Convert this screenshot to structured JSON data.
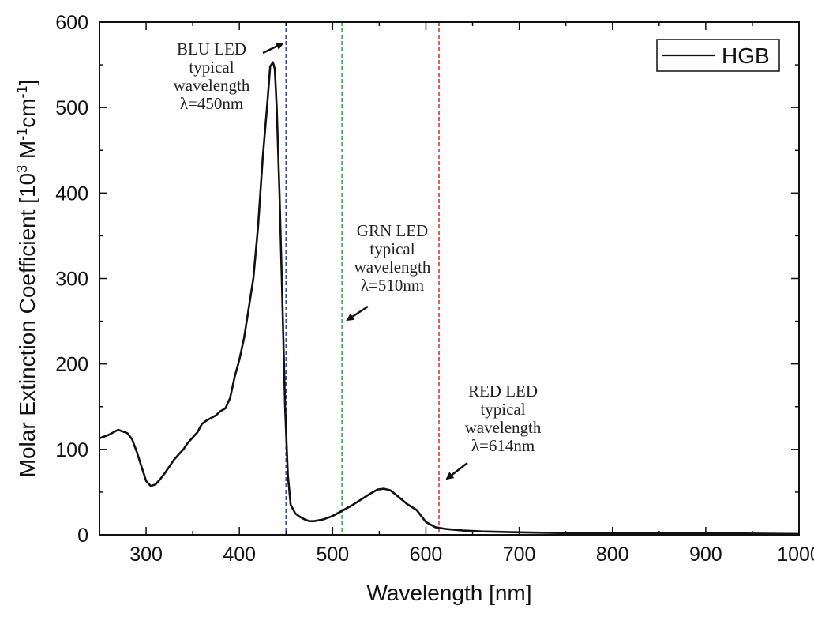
{
  "chart_data": {
    "type": "line",
    "xlabel": "Wavelength [nm]",
    "ylabel_parts": [
      "Molar Extinction Coefficient [10",
      "3",
      " M",
      "-1",
      "cm",
      "-1",
      "]"
    ],
    "xlim": [
      250,
      1000
    ],
    "ylim": [
      0,
      600
    ],
    "x_ticks": [
      300,
      400,
      500,
      600,
      700,
      800,
      900,
      1000
    ],
    "y_ticks": [
      0,
      100,
      200,
      300,
      400,
      500,
      600
    ],
    "legend": {
      "label": "HGB",
      "position": "top-right"
    },
    "series": [
      {
        "name": "HGB",
        "color": "#111111",
        "points": [
          [
            250,
            113
          ],
          [
            260,
            117
          ],
          [
            270,
            123
          ],
          [
            280,
            119
          ],
          [
            285,
            112
          ],
          [
            290,
            97
          ],
          [
            295,
            80
          ],
          [
            300,
            63
          ],
          [
            305,
            57
          ],
          [
            310,
            59
          ],
          [
            315,
            65
          ],
          [
            320,
            72
          ],
          [
            330,
            88
          ],
          [
            340,
            100
          ],
          [
            345,
            108
          ],
          [
            355,
            120
          ],
          [
            360,
            130
          ],
          [
            365,
            134
          ],
          [
            375,
            140
          ],
          [
            380,
            145
          ],
          [
            385,
            148
          ],
          [
            390,
            160
          ],
          [
            395,
            185
          ],
          [
            400,
            205
          ],
          [
            405,
            230
          ],
          [
            410,
            265
          ],
          [
            415,
            300
          ],
          [
            420,
            360
          ],
          [
            425,
            440
          ],
          [
            430,
            505
          ],
          [
            433,
            548
          ],
          [
            436,
            553
          ],
          [
            438,
            545
          ],
          [
            440,
            500
          ],
          [
            443,
            400
          ],
          [
            446,
            280
          ],
          [
            449,
            150
          ],
          [
            452,
            70
          ],
          [
            455,
            35
          ],
          [
            460,
            25
          ],
          [
            465,
            21
          ],
          [
            470,
            18
          ],
          [
            475,
            16
          ],
          [
            480,
            16
          ],
          [
            490,
            18
          ],
          [
            500,
            22
          ],
          [
            510,
            28
          ],
          [
            520,
            34
          ],
          [
            530,
            41
          ],
          [
            540,
            48
          ],
          [
            548,
            53
          ],
          [
            555,
            54
          ],
          [
            562,
            52
          ],
          [
            570,
            45
          ],
          [
            580,
            36
          ],
          [
            590,
            29
          ],
          [
            600,
            15
          ],
          [
            610,
            9
          ],
          [
            620,
            7
          ],
          [
            640,
            5
          ],
          [
            660,
            4
          ],
          [
            700,
            3
          ],
          [
            750,
            2
          ],
          [
            800,
            2
          ],
          [
            850,
            2
          ],
          [
            900,
            2
          ],
          [
            950,
            1.5
          ],
          [
            1000,
            1
          ]
        ]
      }
    ],
    "reference_lines": [
      {
        "name": "BLU",
        "x": 450,
        "color": "#2a4fc0"
      },
      {
        "name": "GRN",
        "x": 510,
        "color": "#2fb34a"
      },
      {
        "name": "RED",
        "x": 614,
        "color": "#d83a2e"
      }
    ],
    "annotations": [
      {
        "name": "blu-annotation",
        "lines": [
          "BLU LED",
          "typical",
          "wavelength",
          "λ=450nm"
        ]
      },
      {
        "name": "grn-annotation",
        "lines": [
          "GRN LED",
          "typical",
          "wavelength",
          "λ=510nm"
        ]
      },
      {
        "name": "red-annotation",
        "lines": [
          "RED LED",
          "typical",
          "wavelength",
          "λ=614nm"
        ]
      }
    ]
  }
}
